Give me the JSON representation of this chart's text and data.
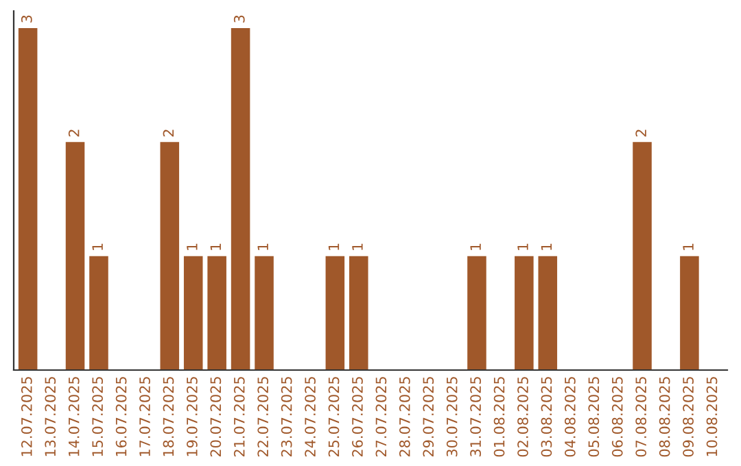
{
  "chart_data": {
    "type": "bar",
    "categories": [
      "12.07.2025",
      "13.07.2025",
      "14.07.2025",
      "15.07.2025",
      "16.07.2025",
      "17.07.2025",
      "18.07.2025",
      "19.07.2025",
      "20.07.2025",
      "21.07.2025",
      "22.07.2025",
      "23.07.2025",
      "24.07.2025",
      "25.07.2025",
      "26.07.2025",
      "27.07.2025",
      "28.07.2025",
      "29.07.2025",
      "30.07.2025",
      "31.07.2025",
      "01.08.2025",
      "02.08.2025",
      "03.08.2025",
      "04.08.2025",
      "05.08.2025",
      "06.08.2025",
      "07.08.2025",
      "08.08.2025",
      "09.08.2025",
      "10.08.2025"
    ],
    "values": [
      3,
      0,
      2,
      1,
      0,
      0,
      2,
      1,
      1,
      3,
      1,
      0,
      0,
      1,
      1,
      0,
      0,
      0,
      0,
      1,
      0,
      1,
      1,
      0,
      0,
      0,
      2,
      0,
      1,
      0
    ],
    "value_labels": [
      "3",
      null,
      "2",
      "1",
      null,
      null,
      "2",
      "1",
      "1",
      "3",
      "1",
      null,
      null,
      "1",
      "1",
      null,
      null,
      null,
      null,
      "1",
      null,
      "1",
      "1",
      null,
      null,
      null,
      "2",
      null,
      "1",
      null
    ],
    "color": "#a0582a",
    "grid": false,
    "legend": false
  }
}
